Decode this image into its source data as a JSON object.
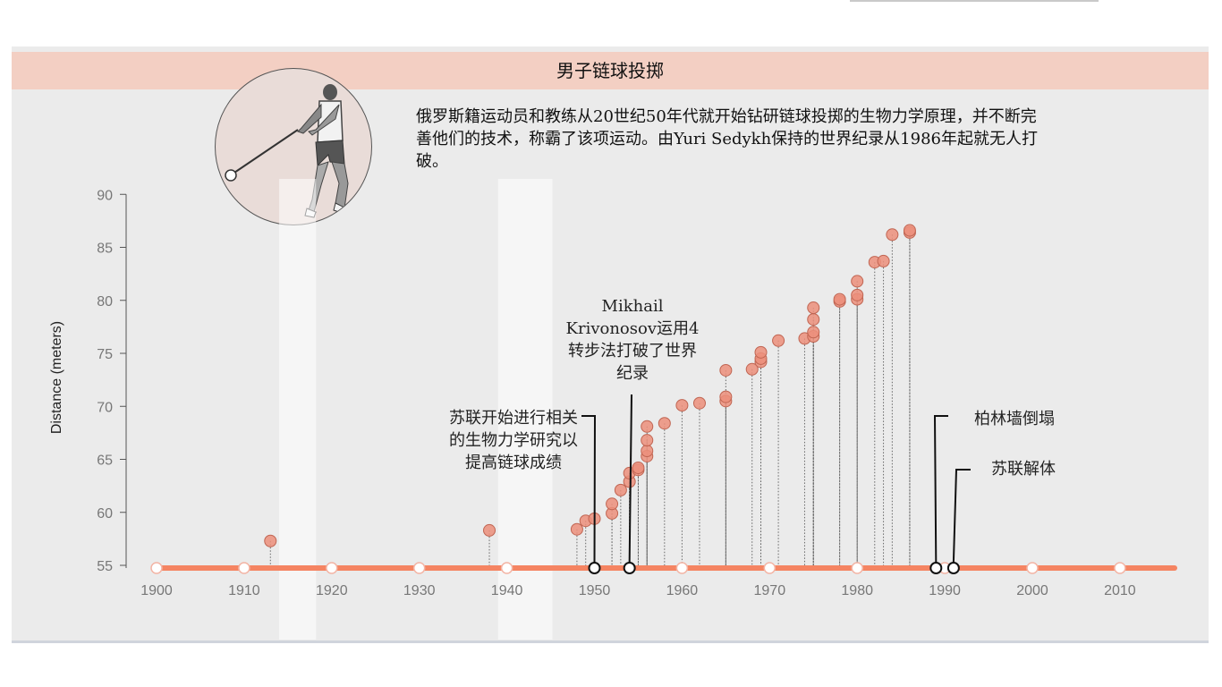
{
  "title": "男子链球投掷",
  "intro": "俄罗斯籍运动员和教练从20世纪50年代就开始钻研链球投掷的生物力学原理，并不断完善他们的技术，称霸了该项运动。由Yuri Sedykh保持的世界纪录从1986年起就无人打破。",
  "colors": {
    "accent": "#f58462",
    "dot": "#ec8f7b",
    "panel": "#ebebeb",
    "title_bar": "#f3cfc3"
  },
  "icons": {
    "athlete": "hammer-thrower-icon"
  },
  "chart_data": {
    "type": "scatter",
    "ylabel": "Distance (meters)",
    "xlabel": "",
    "xlim": [
      1900,
      2016
    ],
    "ylim": [
      55,
      90
    ],
    "x_ticks": [
      1900,
      1910,
      1920,
      1930,
      1940,
      1950,
      1960,
      1970,
      1980,
      1990,
      2000,
      2010
    ],
    "y_ticks": [
      55,
      60,
      65,
      70,
      75,
      80,
      85,
      90
    ],
    "highlight_bands": [
      [
        1914,
        1918
      ],
      [
        1939,
        1945
      ]
    ],
    "points": [
      [
        1913,
        57.3
      ],
      [
        1938,
        58.3
      ],
      [
        1948,
        58.4
      ],
      [
        1949,
        59.2
      ],
      [
        1950,
        59.4
      ],
      [
        1952,
        59.9
      ],
      [
        1952,
        60.8
      ],
      [
        1953,
        62.1
      ],
      [
        1954,
        62.9
      ],
      [
        1954,
        63.7
      ],
      [
        1955,
        64.0
      ],
      [
        1955,
        64.2
      ],
      [
        1956,
        65.3
      ],
      [
        1956,
        65.8
      ],
      [
        1956,
        66.8
      ],
      [
        1956,
        68.1
      ],
      [
        1958,
        68.4
      ],
      [
        1960,
        70.1
      ],
      [
        1962,
        70.3
      ],
      [
        1965,
        70.5
      ],
      [
        1965,
        70.9
      ],
      [
        1965,
        73.4
      ],
      [
        1968,
        73.5
      ],
      [
        1969,
        74.2
      ],
      [
        1969,
        74.5
      ],
      [
        1969,
        75.1
      ],
      [
        1971,
        76.2
      ],
      [
        1974,
        76.4
      ],
      [
        1975,
        76.6
      ],
      [
        1975,
        77.0
      ],
      [
        1975,
        78.2
      ],
      [
        1975,
        79.3
      ],
      [
        1978,
        79.9
      ],
      [
        1978,
        80.1
      ],
      [
        1980,
        80.1
      ],
      [
        1980,
        80.5
      ],
      [
        1980,
        81.8
      ],
      [
        1982,
        83.6
      ],
      [
        1983,
        83.7
      ],
      [
        1984,
        86.2
      ],
      [
        1986,
        86.4
      ],
      [
        1986,
        86.6
      ]
    ],
    "events": [
      {
        "year": 1950,
        "label": "苏联开始进行相关的生物力学研究以提高链球成绩"
      },
      {
        "year": 1954,
        "label": "Mikhail Krivonosov运用4转步法打破了世界纪录"
      },
      {
        "year": 1989,
        "label": "柏林墙倒塌"
      },
      {
        "year": 1991,
        "label": "苏联解体"
      }
    ]
  }
}
